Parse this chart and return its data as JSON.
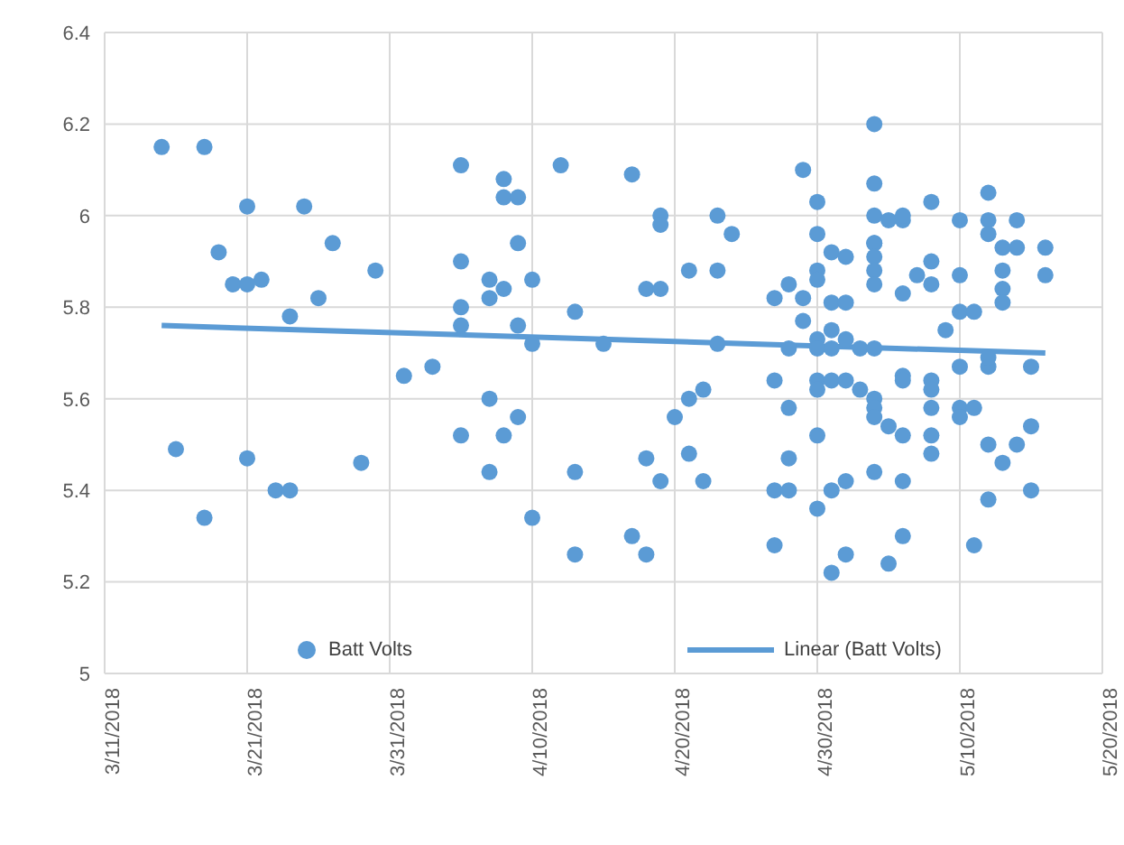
{
  "chart_data": {
    "type": "scatter",
    "xlim": [
      "2018-03-11",
      "2018-05-20"
    ],
    "xticks": [
      {
        "value": "2018-03-11",
        "label": "3/11/2018"
      },
      {
        "value": "2018-03-21",
        "label": "3/21/2018"
      },
      {
        "value": "2018-03-31",
        "label": "3/31/2018"
      },
      {
        "value": "2018-04-10",
        "label": "4/10/2018"
      },
      {
        "value": "2018-04-20",
        "label": "4/20/2018"
      },
      {
        "value": "2018-04-30",
        "label": "4/30/2018"
      },
      {
        "value": "2018-05-10",
        "label": "5/10/2018"
      },
      {
        "value": "2018-05-20",
        "label": "5/20/2018"
      }
    ],
    "ylim": [
      5,
      6.4
    ],
    "yticks": [
      {
        "value": 5,
        "label": "5"
      },
      {
        "value": 5.2,
        "label": "5.2"
      },
      {
        "value": 5.4,
        "label": "5.4"
      },
      {
        "value": 5.6,
        "label": "5.6"
      },
      {
        "value": 5.8,
        "label": "5.8"
      },
      {
        "value": 6,
        "label": "6"
      },
      {
        "value": 6.2,
        "label": "6.2"
      },
      {
        "value": 6.4,
        "label": "6.4"
      }
    ],
    "grid": true,
    "legend": "bottom",
    "series": [
      {
        "name": "Batt Volts",
        "marker": "circle",
        "color": "#5b9bd5",
        "x": [
          "2018-03-15",
          "2018-03-18",
          "2018-03-21",
          "2018-03-25",
          "2018-03-19",
          "2018-03-27",
          "2018-03-30",
          "2018-03-20",
          "2018-03-21",
          "2018-03-22",
          "2018-03-26",
          "2018-03-24",
          "2018-04-01",
          "2018-04-03",
          "2018-03-16",
          "2018-03-21",
          "2018-03-29",
          "2018-03-23",
          "2018-03-24",
          "2018-03-18",
          "2018-04-05",
          "2018-04-08",
          "2018-04-08",
          "2018-04-09",
          "2018-04-09",
          "2018-04-05",
          "2018-04-07",
          "2018-04-07",
          "2018-04-08",
          "2018-04-10",
          "2018-04-05",
          "2018-04-05",
          "2018-04-09",
          "2018-04-10",
          "2018-04-12",
          "2018-04-13",
          "2018-04-15",
          "2018-04-17",
          "2018-04-19",
          "2018-04-19",
          "2018-04-18",
          "2018-04-19",
          "2018-04-23",
          "2018-04-24",
          "2018-04-21",
          "2018-04-23",
          "2018-04-23",
          "2018-04-07",
          "2018-04-05",
          "2018-04-08",
          "2018-04-09",
          "2018-04-07",
          "2018-04-13",
          "2018-04-10",
          "2018-04-13",
          "2018-04-17",
          "2018-04-18",
          "2018-04-18",
          "2018-04-19",
          "2018-04-20",
          "2018-04-21",
          "2018-04-22",
          "2018-04-21",
          "2018-04-22",
          "2018-04-27",
          "2018-04-27",
          "2018-04-27",
          "2018-04-27",
          "2018-05-04",
          "2018-04-29",
          "2018-04-30",
          "2018-05-04",
          "2018-05-04",
          "2018-05-05",
          "2018-05-06",
          "2018-05-06",
          "2018-05-08",
          "2018-05-10",
          "2018-05-12",
          "2018-05-12",
          "2018-05-12",
          "2018-05-14",
          "2018-04-30",
          "2018-05-01",
          "2018-05-02",
          "2018-05-04",
          "2018-05-04",
          "2018-05-04",
          "2018-05-04",
          "2018-05-04",
          "2018-05-06",
          "2018-05-07",
          "2018-05-08",
          "2018-05-08",
          "2018-05-10",
          "2018-05-13",
          "2018-05-14",
          "2018-05-16",
          "2018-05-13",
          "2018-05-16",
          "2018-05-13",
          "2018-05-13",
          "2018-05-10",
          "2018-05-11",
          "2018-05-09",
          "2018-04-30",
          "2018-04-30",
          "2018-04-28",
          "2018-04-29",
          "2018-05-01",
          "2018-05-02",
          "2018-04-29",
          "2018-05-01",
          "2018-04-30",
          "2018-04-28",
          "2018-04-30",
          "2018-05-01",
          "2018-05-02",
          "2018-05-03",
          "2018-05-04",
          "2018-05-10",
          "2018-05-12",
          "2018-05-12",
          "2018-05-15",
          "2018-04-30",
          "2018-04-30",
          "2018-05-01",
          "2018-05-02",
          "2018-05-03",
          "2018-05-06",
          "2018-05-06",
          "2018-05-08",
          "2018-05-08",
          "2018-04-28",
          "2018-05-04",
          "2018-05-04",
          "2018-05-04",
          "2018-05-05",
          "2018-05-08",
          "2018-05-10",
          "2018-05-11",
          "2018-05-10",
          "2018-04-30",
          "2018-05-06",
          "2018-05-08",
          "2018-05-08",
          "2018-05-12",
          "2018-05-13",
          "2018-05-14",
          "2018-05-15",
          "2018-04-28",
          "2018-04-28",
          "2018-05-01",
          "2018-05-02",
          "2018-05-04",
          "2018-05-06",
          "2018-05-12",
          "2018-05-15",
          "2018-04-30",
          "2018-05-02",
          "2018-05-01",
          "2018-05-05",
          "2018-05-06",
          "2018-05-11"
        ],
        "values": [
          6.15,
          6.15,
          6.02,
          6.02,
          5.92,
          5.94,
          5.88,
          5.85,
          5.85,
          5.86,
          5.82,
          5.78,
          5.65,
          5.67,
          5.49,
          5.47,
          5.46,
          5.4,
          5.4,
          5.34,
          6.11,
          6.08,
          6.04,
          6.04,
          5.94,
          5.9,
          5.86,
          5.82,
          5.84,
          5.86,
          5.8,
          5.76,
          5.76,
          5.72,
          6.11,
          5.79,
          5.72,
          6.09,
          6.0,
          5.98,
          5.84,
          5.84,
          6.0,
          5.96,
          5.88,
          5.88,
          5.72,
          5.6,
          5.52,
          5.52,
          5.56,
          5.44,
          5.44,
          5.34,
          5.26,
          5.3,
          5.26,
          5.47,
          5.42,
          5.56,
          5.6,
          5.62,
          5.48,
          5.42,
          5.82,
          5.64,
          5.4,
          5.28,
          6.2,
          6.1,
          6.03,
          6.07,
          6.0,
          5.99,
          5.99,
          6.0,
          6.03,
          5.99,
          6.05,
          5.99,
          5.96,
          5.99,
          5.96,
          5.92,
          5.91,
          5.94,
          5.94,
          5.91,
          5.88,
          5.85,
          5.83,
          5.87,
          5.9,
          5.85,
          5.87,
          5.93,
          5.93,
          5.93,
          5.88,
          5.87,
          5.84,
          5.81,
          5.79,
          5.79,
          5.75,
          5.88,
          5.86,
          5.85,
          5.82,
          5.81,
          5.81,
          5.77,
          5.75,
          5.73,
          5.71,
          5.71,
          5.71,
          5.73,
          5.71,
          5.71,
          5.67,
          5.67,
          5.69,
          5.67,
          5.64,
          5.62,
          5.64,
          5.64,
          5.62,
          5.65,
          5.64,
          5.64,
          5.62,
          5.58,
          5.6,
          5.58,
          5.56,
          5.54,
          5.58,
          5.58,
          5.58,
          5.56,
          5.52,
          5.52,
          5.52,
          5.48,
          5.5,
          5.46,
          5.5,
          5.54,
          5.47,
          5.4,
          5.4,
          5.42,
          5.44,
          5.42,
          5.38,
          5.4,
          5.36,
          5.26,
          5.22,
          5.24,
          5.3,
          5.28
        ]
      },
      {
        "name": "Linear (Batt Volts)",
        "type": "line",
        "color": "#5b9bd5",
        "x": [
          "2018-03-15",
          "2018-05-16"
        ],
        "values": [
          5.76,
          5.7
        ]
      }
    ]
  }
}
